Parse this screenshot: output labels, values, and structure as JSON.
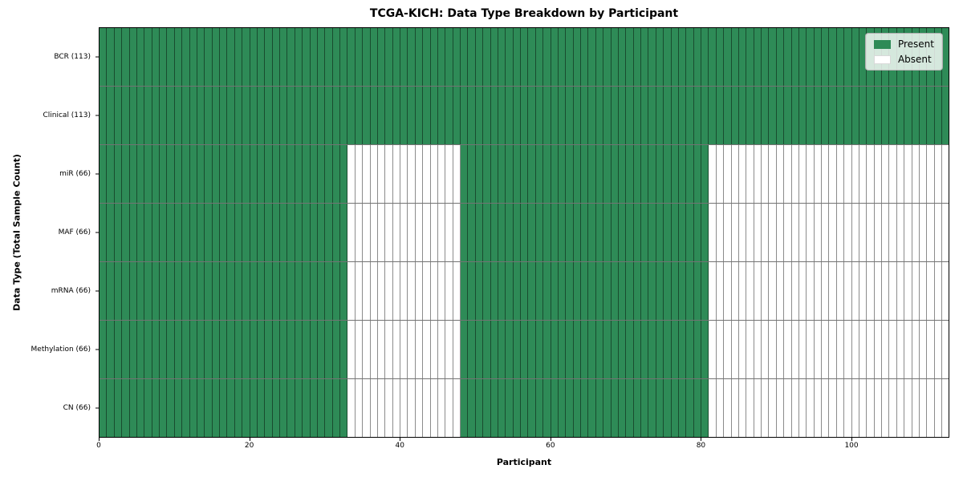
{
  "chart_data": {
    "type": "heatmap",
    "title": "TCGA-KICH: Data Type Breakdown by Participant",
    "xlabel": "Participant",
    "ylabel": "Data Type (Total Sample Count)",
    "x_range": [
      0,
      113
    ],
    "n_participants": 113,
    "x_ticks": [
      "0",
      "20",
      "40",
      "60",
      "80",
      "100"
    ],
    "x_tick_values": [
      0,
      20,
      40,
      60,
      80,
      100
    ],
    "grid": false,
    "legend_position": "upper right",
    "legend": [
      {
        "label": "Present",
        "color": "#2e8b57"
      },
      {
        "label": "Absent",
        "color": "#ffffff"
      }
    ],
    "rows": [
      {
        "label": "BCR (113)",
        "total_samples": 113,
        "present_count": 113,
        "absent_count": 0,
        "present_ranges": [
          [
            0,
            113
          ]
        ]
      },
      {
        "label": "Clinical (113)",
        "total_samples": 113,
        "present_count": 113,
        "absent_count": 0,
        "present_ranges": [
          [
            0,
            113
          ]
        ]
      },
      {
        "label": "miR (66)",
        "total_samples": 66,
        "present_count": 66,
        "absent_count": 47,
        "present_ranges": [
          [
            0,
            33
          ],
          [
            48,
            81
          ]
        ]
      },
      {
        "label": "MAF (66)",
        "total_samples": 66,
        "present_count": 66,
        "absent_count": 47,
        "present_ranges": [
          [
            0,
            33
          ],
          [
            48,
            81
          ]
        ]
      },
      {
        "label": "mRNA (66)",
        "total_samples": 66,
        "present_count": 66,
        "absent_count": 47,
        "present_ranges": [
          [
            0,
            33
          ],
          [
            48,
            81
          ]
        ]
      },
      {
        "label": "Methylation (66)",
        "total_samples": 66,
        "present_count": 66,
        "absent_count": 47,
        "present_ranges": [
          [
            0,
            33
          ],
          [
            48,
            81
          ]
        ]
      },
      {
        "label": "CN (66)",
        "total_samples": 66,
        "present_count": 66,
        "absent_count": 47,
        "present_ranges": [
          [
            0,
            33
          ],
          [
            48,
            81
          ]
        ]
      }
    ]
  }
}
